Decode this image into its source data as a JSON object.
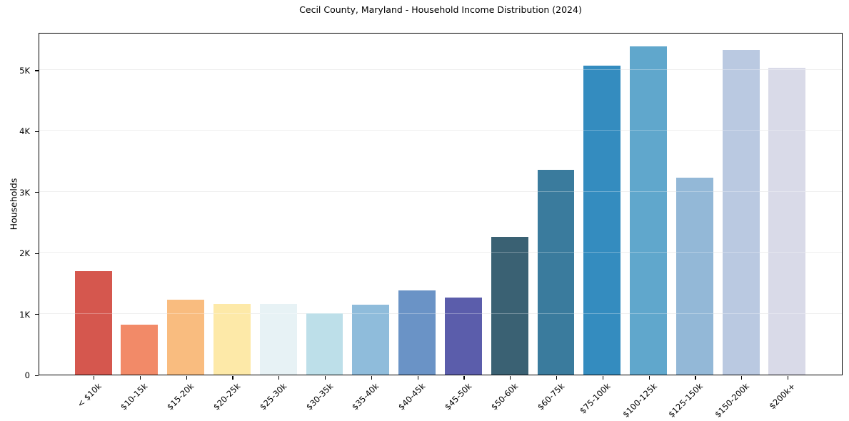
{
  "chart_data": {
    "type": "bar",
    "title": "Cecil County, Maryland - Household Income Distribution (2024)",
    "xlabel": "",
    "ylabel": "Households",
    "categories": [
      "< $10k",
      "$10-15k",
      "$15-20k",
      "$20-25k",
      "$25-30k",
      "$30-35k",
      "$35-40k",
      "$40-45k",
      "$45-50k",
      "$50-60k",
      "$60-75k",
      "$75-100k",
      "$100-125k",
      "$125-150k",
      "$150-200k",
      "$200k+"
    ],
    "values": [
      1695,
      815,
      1225,
      1165,
      1160,
      1010,
      1150,
      1385,
      1270,
      2255,
      3360,
      5065,
      5390,
      3230,
      5330,
      5035
    ],
    "bar_colors": [
      "#d5574e",
      "#f28a68",
      "#f9bc7f",
      "#fde9a8",
      "#e7f2f5",
      "#bddfe9",
      "#8fbcdb",
      "#6a93c6",
      "#5b5dab",
      "#3a6173",
      "#3a7b9d",
      "#348cbf",
      "#60a7cc",
      "#93b8d7",
      "#bac9e1",
      "#d9dae8"
    ],
    "ytick_labels": [
      "0",
      "1K",
      "2K",
      "3K",
      "4K",
      "5K"
    ],
    "ytick_values": [
      0,
      1000,
      2000,
      3000,
      4000,
      5000
    ],
    "ylim": [
      0,
      5620
    ],
    "grid": "horizontal",
    "legend": "none",
    "background": "#ffffff",
    "gridline_color": "#e9e9e9",
    "axis_color": "#000000",
    "text_color": "#000000"
  }
}
